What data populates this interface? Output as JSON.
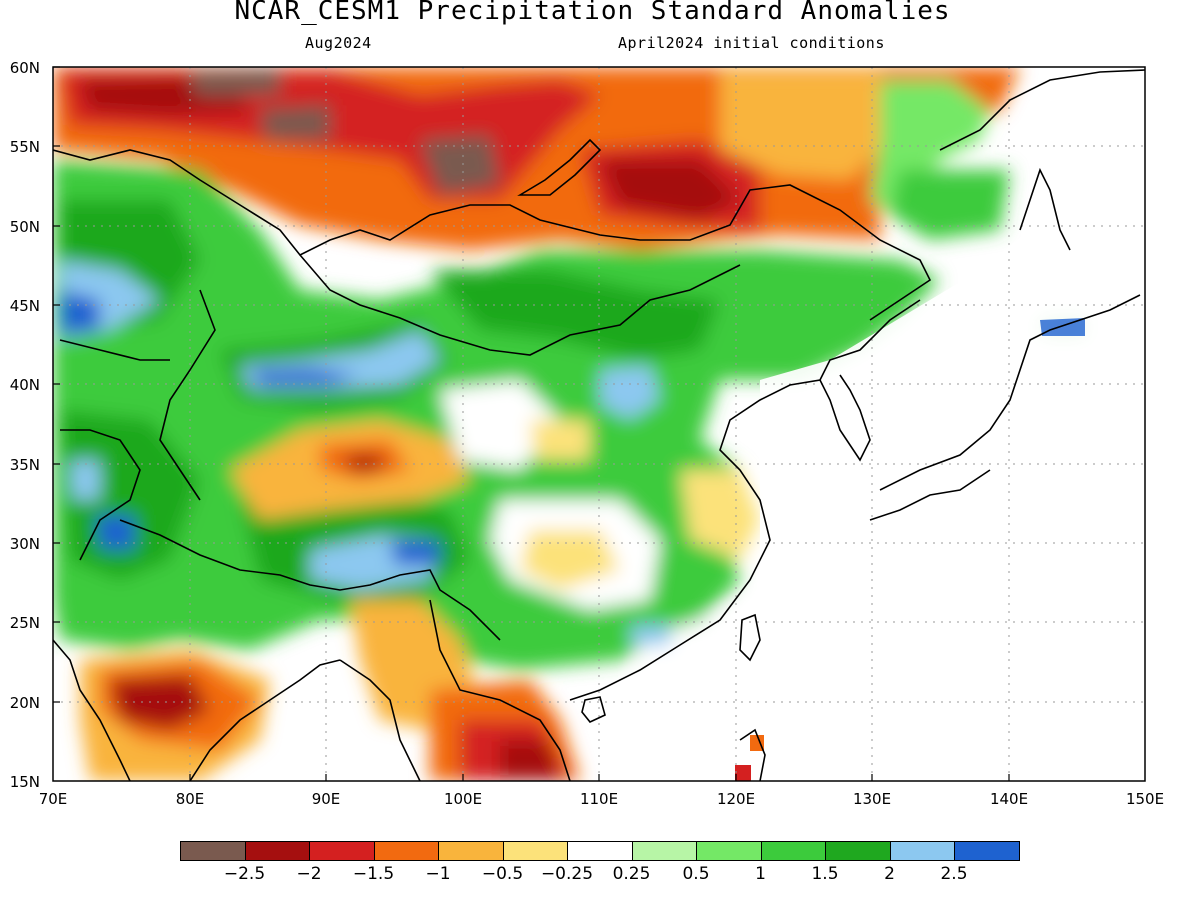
{
  "title": "NCAR_CESM1 Precipitation Standard Anomalies",
  "subtitle_left": "Aug2024",
  "subtitle_right": "April2024 initial conditions",
  "map": {
    "lon_range": [
      70,
      150
    ],
    "lat_range": [
      15,
      60
    ],
    "lat_labels": [
      "60N",
      "55N",
      "50N",
      "45N",
      "40N",
      "35N",
      "30N",
      "25N",
      "20N",
      "15N"
    ],
    "lon_labels": [
      "70E",
      "80E",
      "90E",
      "100E",
      "110E",
      "120E",
      "130E",
      "140E",
      "150E"
    ]
  },
  "legend": {
    "colors": [
      "#7a5a4f",
      "#a50f0f",
      "#d42020",
      "#f26a10",
      "#f9b43c",
      "#fce27a",
      "#ffffff",
      "#b7f5a6",
      "#74e866",
      "#3ccb3c",
      "#1fa81f",
      "#8cc8f0",
      "#1e62d0"
    ],
    "labels": [
      "−2.5",
      "−2",
      "−1.5",
      "−1",
      "−0.5",
      "−0.25",
      "0.25",
      "0.5",
      "1",
      "1.5",
      "2",
      "2.5"
    ]
  }
}
